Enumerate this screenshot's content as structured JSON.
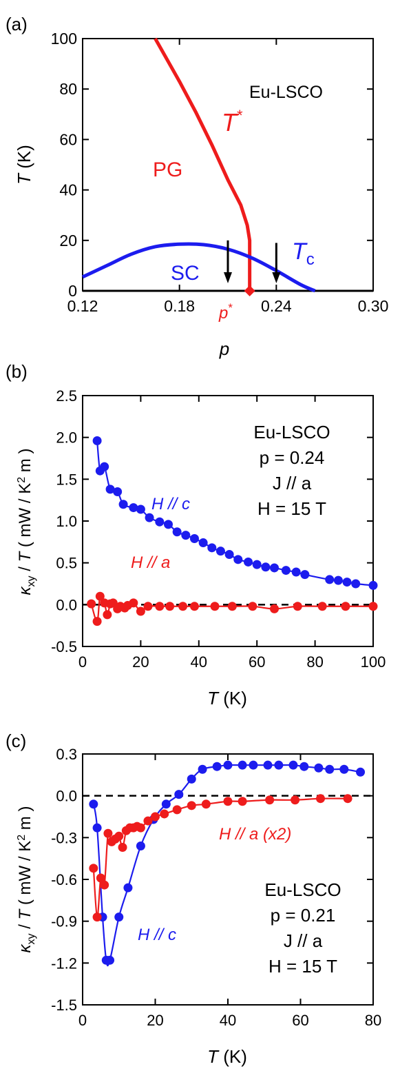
{
  "colors": {
    "red": "#ee1c1c",
    "blue": "#1c1cee",
    "axis": "#000000"
  },
  "chart_data": [
    {
      "panel": "(a)",
      "type": "line",
      "xlabel": "p",
      "ylabel_italic": "T",
      "ylabel_rest": " (K)",
      "xlim": [
        0.12,
        0.3
      ],
      "ylim": [
        0,
        100
      ],
      "xticks": [
        "0.12",
        "0.18",
        "0.24",
        "0.30"
      ],
      "xtick_values": [
        0.12,
        0.18,
        0.24,
        0.3
      ],
      "yticks": [
        "0",
        "20",
        "40",
        "60",
        "80",
        "100"
      ],
      "ytick_values": [
        0,
        20,
        40,
        60,
        80,
        100
      ],
      "annotations": {
        "sample": "Eu-LSCO",
        "pg": "PG",
        "sc": "SC",
        "tstar": "T",
        "tstar_sup": "*",
        "tc": "T",
        "tc_sub": "c",
        "pstar": "p",
        "pstar_sup": "*"
      },
      "series": [
        {
          "name": "T*",
          "color": "red",
          "x": [
            0.165,
            0.18,
            0.19,
            0.2,
            0.21,
            0.218,
            0.222,
            0.2235,
            0.2235
          ],
          "y": [
            100,
            83,
            71,
            58,
            44,
            34,
            26,
            20,
            0
          ]
        },
        {
          "name": "Tc",
          "color": "blue",
          "x": [
            0.12,
            0.135,
            0.15,
            0.165,
            0.18,
            0.195,
            0.21,
            0.225,
            0.24,
            0.255,
            0.264
          ],
          "y": [
            5.5,
            10,
            14.5,
            17.5,
            18.5,
            18.3,
            16.5,
            13,
            8,
            2.5,
            0
          ]
        }
      ],
      "pstar_marker": {
        "x": 0.2235,
        "y": 0
      },
      "arrows": [
        {
          "x": 0.21,
          "y_from": 20,
          "y_to": 3
        },
        {
          "x": 0.24,
          "y_from": 19,
          "y_to": 3
        }
      ]
    },
    {
      "panel": "(b)",
      "type": "scatter",
      "xlabel_italic": "T",
      "xlabel_rest": " (K)",
      "ylabel": "κxy / T ( mW / K2 m )",
      "xlim": [
        0,
        100
      ],
      "ylim": [
        -0.5,
        2.5
      ],
      "xticks": [
        "0",
        "20",
        "40",
        "60",
        "80",
        "100"
      ],
      "xtick_values": [
        0,
        20,
        40,
        60,
        80,
        100
      ],
      "yticks": [
        "-0.5",
        "0.0",
        "0.5",
        "1.0",
        "1.5",
        "2.0",
        "2.5"
      ],
      "ytick_values": [
        -0.5,
        0,
        0.5,
        1.0,
        1.5,
        2.0,
        2.5
      ],
      "zero_line": true,
      "text_lines": [
        "Eu-LSCO",
        "p = 0.24",
        "J // a",
        "H = 15 T"
      ],
      "series": [
        {
          "name": "H // c",
          "color": "blue",
          "x": [
            5,
            6,
            7.5,
            9.5,
            12,
            14,
            17.5,
            20,
            23,
            26.5,
            29.5,
            32.5,
            35.5,
            38.5,
            41.5,
            44.5,
            47.5,
            50.5,
            53.5,
            57,
            60,
            63,
            66,
            70,
            73.5,
            76.5,
            85,
            88,
            91,
            94,
            100
          ],
          "y": [
            1.96,
            1.6,
            1.65,
            1.38,
            1.35,
            1.2,
            1.16,
            1.14,
            1.04,
            0.99,
            0.96,
            0.87,
            0.83,
            0.79,
            0.74,
            0.68,
            0.64,
            0.6,
            0.54,
            0.51,
            0.48,
            0.45,
            0.44,
            0.41,
            0.39,
            0.36,
            0.3,
            0.29,
            0.27,
            0.25,
            0.23
          ]
        },
        {
          "name": "H // a",
          "color": "red",
          "x": [
            3,
            5,
            6,
            7.5,
            8.5,
            9.5,
            10.5,
            12,
            13,
            14.5,
            15.5,
            17.5,
            20,
            22.5,
            26.5,
            30,
            34.5,
            38.5,
            45.5,
            51.5,
            58.5,
            66,
            74,
            82.5,
            90.5,
            100
          ],
          "y": [
            0.01,
            -0.2,
            0.1,
            0.02,
            -0.12,
            0.01,
            0.02,
            -0.05,
            -0.02,
            -0.04,
            -0.01,
            0.02,
            -0.08,
            -0.02,
            -0.02,
            -0.02,
            -0.02,
            -0.02,
            -0.02,
            -0.02,
            -0.02,
            -0.05,
            -0.02,
            -0.02,
            -0.02,
            -0.02
          ]
        }
      ],
      "labels": {
        "hc": "H // c",
        "ha": "H // a"
      }
    },
    {
      "panel": "(c)",
      "type": "scatter",
      "xlabel_italic": "T",
      "xlabel_rest": " (K)",
      "ylabel": "κxy / T ( mW / K2 m )",
      "xlim": [
        0,
        80
      ],
      "ylim": [
        -1.5,
        0.3
      ],
      "xticks": [
        "0",
        "20",
        "40",
        "60",
        "80"
      ],
      "xtick_values": [
        0,
        20,
        40,
        60,
        80
      ],
      "yticks": [
        "-1.5",
        "-1.2",
        "-0.9",
        "-0.6",
        "-0.3",
        "0.0",
        "0.3"
      ],
      "ytick_values": [
        -1.5,
        -1.2,
        -0.9,
        -0.6,
        -0.3,
        0,
        0.3
      ],
      "zero_line": true,
      "text_lines": [
        "Eu-LSCO",
        "p = 0.21",
        "J // a",
        "H = 15 T"
      ],
      "series": [
        {
          "name": "H // c",
          "color": "blue",
          "x": [
            3,
            4,
            5.5,
            6.5,
            7.5,
            10,
            12.5,
            16,
            19.5,
            23,
            26.5,
            30,
            33,
            37,
            40,
            44,
            47,
            51,
            54,
            58,
            61,
            65,
            68,
            72,
            76.5
          ],
          "y": [
            -0.06,
            -0.23,
            -0.87,
            -1.18,
            -1.18,
            -0.87,
            -0.66,
            -0.36,
            -0.17,
            -0.06,
            0.01,
            0.12,
            0.19,
            0.21,
            0.22,
            0.22,
            0.22,
            0.22,
            0.22,
            0.22,
            0.21,
            0.2,
            0.19,
            0.19,
            0.17
          ]
        },
        {
          "name": "H // a (x2)",
          "color": "red",
          "x": [
            3,
            4,
            5,
            6,
            7,
            8,
            9,
            10,
            11,
            12,
            13,
            14,
            15,
            16,
            18,
            20,
            22.5,
            26,
            30,
            34,
            40,
            44,
            51.5,
            58.5,
            65.5,
            73
          ],
          "y": [
            -0.52,
            -0.87,
            -0.59,
            -0.64,
            -0.27,
            -0.33,
            -0.31,
            -0.29,
            -0.37,
            -0.25,
            -0.23,
            -0.23,
            -0.22,
            -0.23,
            -0.18,
            -0.15,
            -0.13,
            -0.1,
            -0.07,
            -0.06,
            -0.04,
            -0.04,
            -0.03,
            -0.03,
            -0.02,
            -0.02
          ]
        }
      ],
      "labels": {
        "hc": "H // c",
        "ha": "H // a (x2)"
      }
    }
  ]
}
